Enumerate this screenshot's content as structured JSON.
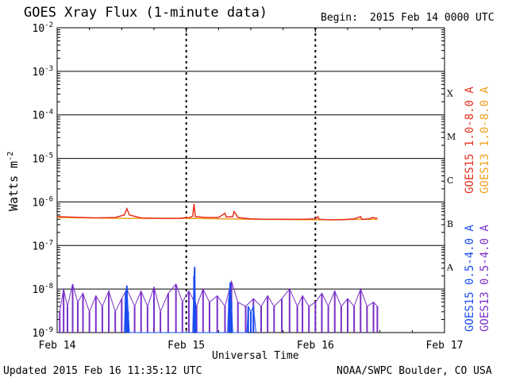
{
  "header": {
    "title": "GOES Xray Flux (1-minute data)",
    "begin_label": "Begin:",
    "begin_value": "2015 Feb 14 0000 UTC"
  },
  "footer": {
    "updated": "Updated 2015 Feb 16 11:35:12 UTC",
    "credit": "NOAA/SWPC Boulder, CO USA"
  },
  "chart_data": {
    "type": "line",
    "title": "GOES Xray Flux (1-minute data)",
    "xlabel": "Universal Time",
    "ylabel": "Watts m",
    "ylabel_sup": "-2",
    "y_scale": "log",
    "ylim_exp": [
      -9,
      -2
    ],
    "xlim_days": [
      0,
      3
    ],
    "x_ticks": [
      "Feb 14",
      "Feb 15",
      "Feb 16",
      "Feb 17"
    ],
    "y_ticks": [
      {
        "base": "10",
        "exp": "-9"
      },
      {
        "base": "10",
        "exp": "-8"
      },
      {
        "base": "10",
        "exp": "-7"
      },
      {
        "base": "10",
        "exp": "-6"
      },
      {
        "base": "10",
        "exp": "-5"
      },
      {
        "base": "10",
        "exp": "-4"
      },
      {
        "base": "10",
        "exp": "-3"
      },
      {
        "base": "10",
        "exp": "-2"
      }
    ],
    "flare_classes": [
      {
        "label": "A",
        "exp": -7.5
      },
      {
        "label": "B",
        "exp": -6.5
      },
      {
        "label": "C",
        "exp": -5.5
      },
      {
        "label": "M",
        "exp": -4.5
      },
      {
        "label": "X",
        "exp": -3.5
      }
    ],
    "grid": true,
    "legend_position": "right",
    "data_end_day": 2.48,
    "series": [
      {
        "name": "GOES15 1.0-8.0 A",
        "color": "#e8301e",
        "points": [
          [
            0.0,
            4.6e-07
          ],
          [
            0.1,
            4.5e-07
          ],
          [
            0.2,
            4.4e-07
          ],
          [
            0.3,
            4.3e-07
          ],
          [
            0.45,
            4.4e-07
          ],
          [
            0.52,
            5e-07
          ],
          [
            0.54,
            7e-07
          ],
          [
            0.56,
            5e-07
          ],
          [
            0.65,
            4.3e-07
          ],
          [
            0.8,
            4.2e-07
          ],
          [
            0.95,
            4.2e-07
          ],
          [
            1.0,
            4.4e-07
          ],
          [
            1.02,
            4.3e-07
          ],
          [
            1.05,
            4.7e-07
          ],
          [
            1.06,
            9e-07
          ],
          [
            1.07,
            4.6e-07
          ],
          [
            1.15,
            4.4e-07
          ],
          [
            1.25,
            4.4e-07
          ],
          [
            1.3,
            5.5e-07
          ],
          [
            1.31,
            4.5e-07
          ],
          [
            1.36,
            4.6e-07
          ],
          [
            1.37,
            6e-07
          ],
          [
            1.38,
            5.5e-07
          ],
          [
            1.4,
            4.4e-07
          ],
          [
            1.5,
            4.1e-07
          ],
          [
            1.6,
            4e-07
          ],
          [
            1.7,
            4e-07
          ],
          [
            1.8,
            4e-07
          ],
          [
            1.9,
            4e-07
          ],
          [
            2.0,
            4.1e-07
          ],
          [
            2.02,
            4.6e-07
          ],
          [
            2.03,
            4e-07
          ],
          [
            2.1,
            3.9e-07
          ],
          [
            2.2,
            3.9e-07
          ],
          [
            2.3,
            4.1e-07
          ],
          [
            2.35,
            4.6e-07
          ],
          [
            2.36,
            4e-07
          ],
          [
            2.42,
            4.1e-07
          ],
          [
            2.44,
            4.4e-07
          ],
          [
            2.48,
            4.2e-07
          ]
        ]
      },
      {
        "name": "GOES13 1.0-8.0 A",
        "color": "#f0a020",
        "points": [
          [
            0.0,
            4.4e-07
          ],
          [
            0.5,
            4.2e-07
          ],
          [
            1.0,
            4.2e-07
          ],
          [
            1.5,
            4e-07
          ],
          [
            2.0,
            3.9e-07
          ],
          [
            2.48,
            4e-07
          ]
        ]
      },
      {
        "name": "GOES15 0.5-4.0 A",
        "color": "#1a4cf0",
        "points": [
          [
            0.52,
            1e-09
          ],
          [
            0.53,
            8e-09
          ],
          [
            0.54,
            1.2e-08
          ],
          [
            0.55,
            3e-09
          ],
          [
            0.56,
            1e-09
          ],
          [
            1.05,
            1e-09
          ],
          [
            1.06,
            2e-08
          ],
          [
            1.065,
            3.2e-08
          ],
          [
            1.07,
            5e-09
          ],
          [
            1.08,
            1e-09
          ],
          [
            1.32,
            1e-09
          ],
          [
            1.33,
            6e-09
          ],
          [
            1.34,
            1.4e-08
          ],
          [
            1.35,
            5e-09
          ],
          [
            1.36,
            1e-09
          ],
          [
            1.47,
            1e-09
          ],
          [
            1.48,
            4e-09
          ],
          [
            1.5,
            3e-09
          ],
          [
            1.52,
            4e-09
          ],
          [
            1.54,
            1e-09
          ]
        ]
      },
      {
        "name": "GOES13 0.5-4.0 A",
        "color": "#7a30c8",
        "points": [
          [
            0.02,
            3e-09
          ],
          [
            0.05,
            1e-08
          ],
          [
            0.08,
            4e-09
          ],
          [
            0.12,
            1.3e-08
          ],
          [
            0.16,
            5e-09
          ],
          [
            0.2,
            8e-09
          ],
          [
            0.25,
            3e-09
          ],
          [
            0.3,
            7e-09
          ],
          [
            0.35,
            4e-09
          ],
          [
            0.4,
            9e-09
          ],
          [
            0.45,
            3e-09
          ],
          [
            0.5,
            6e-09
          ],
          [
            0.54,
            1e-08
          ],
          [
            0.6,
            4e-09
          ],
          [
            0.65,
            9e-09
          ],
          [
            0.7,
            4e-09
          ],
          [
            0.75,
            1.1e-08
          ],
          [
            0.8,
            3e-09
          ],
          [
            0.86,
            8e-09
          ],
          [
            0.92,
            1.3e-08
          ],
          [
            0.97,
            5e-09
          ],
          [
            1.02,
            9e-09
          ],
          [
            1.08,
            4e-09
          ],
          [
            1.13,
            1e-08
          ],
          [
            1.18,
            5e-09
          ],
          [
            1.24,
            7e-09
          ],
          [
            1.3,
            4e-09
          ],
          [
            1.35,
            1.5e-08
          ],
          [
            1.4,
            5e-09
          ],
          [
            1.46,
            4e-09
          ],
          [
            1.52,
            6e-09
          ],
          [
            1.58,
            4e-09
          ],
          [
            1.63,
            7e-09
          ],
          [
            1.68,
            4e-09
          ],
          [
            1.74,
            6e-09
          ],
          [
            1.8,
            1e-08
          ],
          [
            1.86,
            4e-09
          ],
          [
            1.9,
            7e-09
          ],
          [
            1.95,
            4e-09
          ],
          [
            2.0,
            5e-09
          ],
          [
            2.05,
            8e-09
          ],
          [
            2.1,
            4e-09
          ],
          [
            2.15,
            9e-09
          ],
          [
            2.2,
            4e-09
          ],
          [
            2.25,
            6e-09
          ],
          [
            2.3,
            4e-09
          ],
          [
            2.35,
            1e-08
          ],
          [
            2.4,
            4e-09
          ],
          [
            2.45,
            5e-09
          ],
          [
            2.48,
            4e-09
          ]
        ]
      }
    ]
  }
}
